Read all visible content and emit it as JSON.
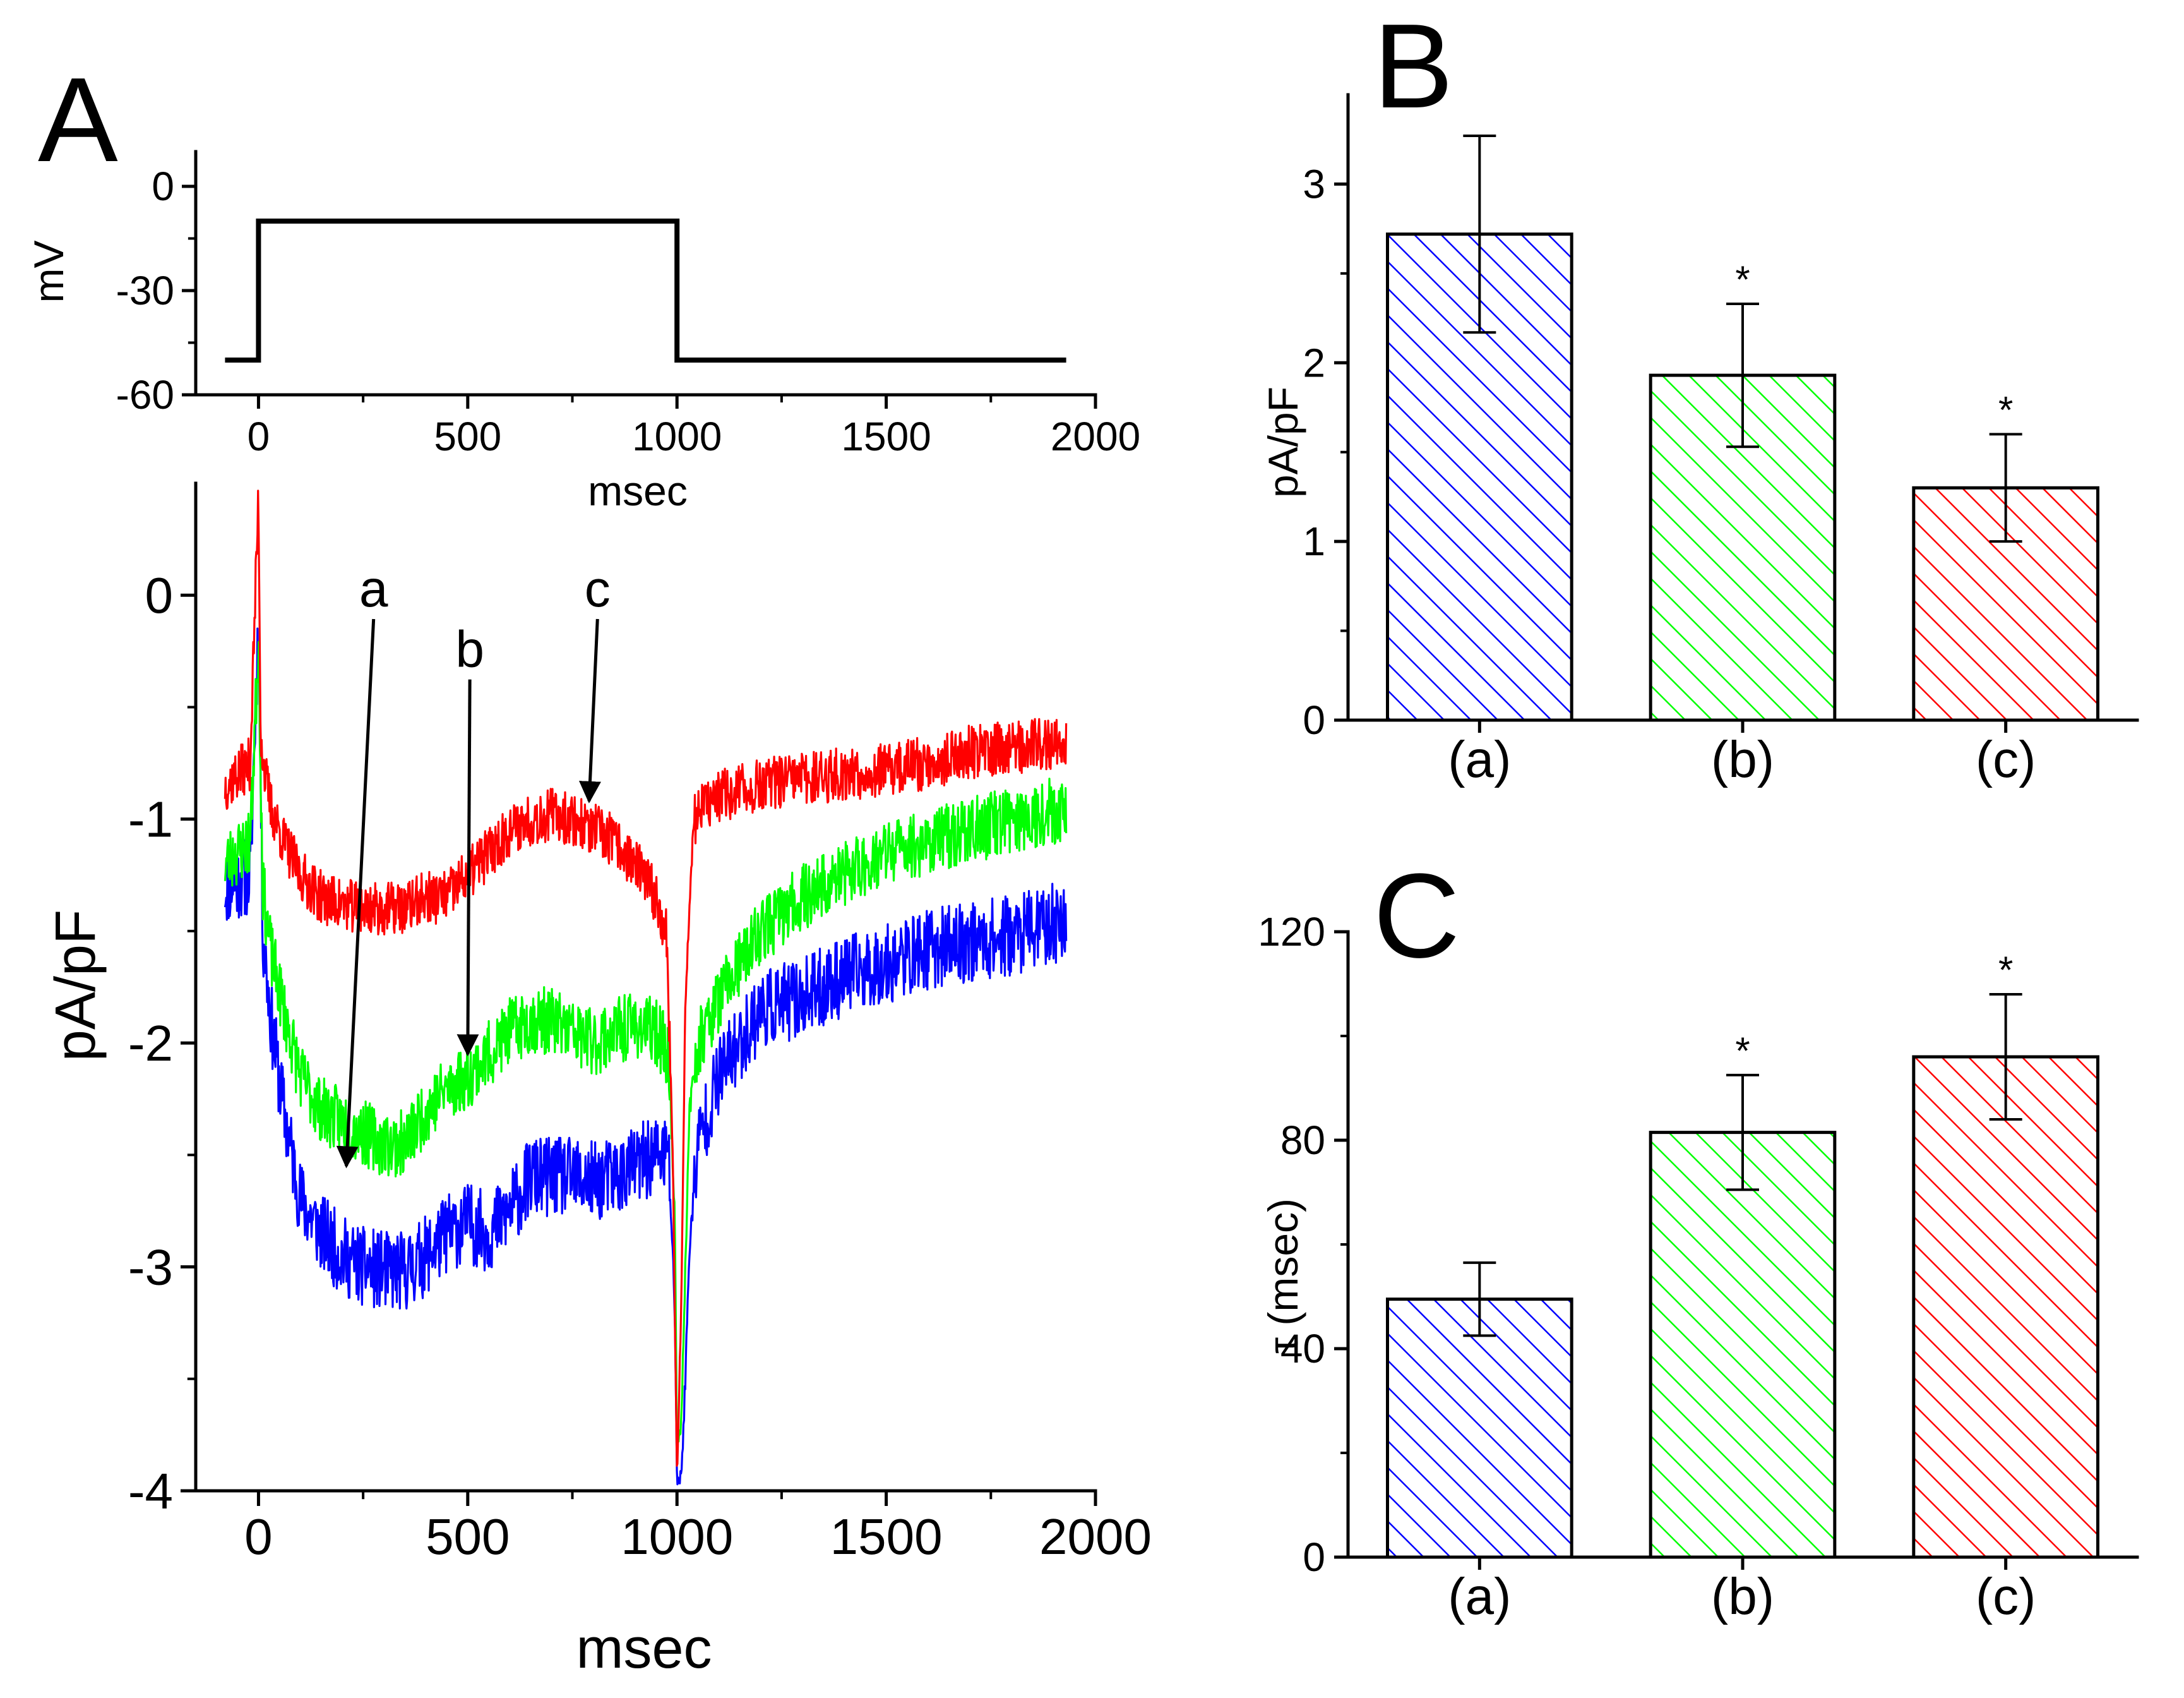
{
  "chart_data": [
    {
      "id": "A-top",
      "panel_label": "A",
      "type": "line",
      "title": "",
      "xlabel": "msec",
      "ylabel": "mV",
      "xlim": [
        -150,
        2000
      ],
      "ylim": [
        -60,
        10
      ],
      "xticks": [
        0,
        500,
        1000,
        1500,
        2000
      ],
      "xtick_labels": [
        "0",
        "500",
        "1000",
        "1500",
        "2000"
      ],
      "yticks": [
        0,
        -30,
        -60
      ],
      "ytick_labels": [
        "0",
        "-30",
        "-60"
      ],
      "grid": false,
      "series": [
        {
          "name": "voltage protocol",
          "color": "#000000",
          "x": [
            -80,
            0,
            0,
            1000,
            1000,
            1930
          ],
          "y": [
            -50,
            -50,
            -10,
            -10,
            -50,
            -50
          ]
        }
      ]
    },
    {
      "id": "A-bottom",
      "type": "line",
      "title": "",
      "xlabel": "msec",
      "ylabel": "pA/pF",
      "xlim": [
        -150,
        2000
      ],
      "ylim": [
        -4,
        0.5
      ],
      "xticks": [
        0,
        500,
        1000,
        1500,
        2000
      ],
      "xtick_labels": [
        "0",
        "500",
        "1000",
        "1500",
        "2000"
      ],
      "yticks": [
        0,
        -1,
        -2,
        -3,
        -4
      ],
      "ytick_labels": [
        "0",
        "-1",
        "-2",
        "-3",
        "-4"
      ],
      "grid": false,
      "annotations": [
        {
          "label": "a",
          "points_to_series": "a",
          "x": 210,
          "y": -2.55
        },
        {
          "label": "b",
          "points_to_series": "b",
          "x": 500,
          "y": -2.05
        },
        {
          "label": "c",
          "points_to_series": "c",
          "x": 790,
          "y": -0.92
        }
      ],
      "series": [
        {
          "name": "a",
          "color": "#0000ff",
          "noise": 0.18,
          "x": [
            -80,
            -20,
            0,
            10,
            30,
            60,
            100,
            150,
            200,
            250,
            300,
            350,
            400,
            450,
            500,
            550,
            600,
            650,
            700,
            750,
            800,
            850,
            900,
            950,
            980,
            995,
            1000,
            1010,
            1020,
            1030,
            1050,
            1100,
            1150,
            1200,
            1300,
            1400,
            1500,
            1600,
            1700,
            1800,
            1930
          ],
          "y": [
            -1.3,
            -1.25,
            -0.1,
            -1.5,
            -1.9,
            -2.3,
            -2.7,
            -2.85,
            -2.95,
            -3.0,
            -3.02,
            -3.02,
            -2.95,
            -2.85,
            -2.8,
            -2.85,
            -2.75,
            -2.6,
            -2.6,
            -2.6,
            -2.62,
            -2.6,
            -2.55,
            -2.5,
            -2.5,
            -3.2,
            -3.95,
            -3.95,
            -3.5,
            -2.9,
            -2.45,
            -2.15,
            -2.0,
            -1.85,
            -1.8,
            -1.7,
            -1.65,
            -1.58,
            -1.55,
            -1.52,
            -1.45
          ]
        },
        {
          "name": "b",
          "color": "#00ff00",
          "noise": 0.15,
          "x": [
            -80,
            -20,
            0,
            10,
            30,
            60,
            100,
            150,
            200,
            250,
            300,
            350,
            400,
            450,
            500,
            550,
            600,
            650,
            700,
            750,
            800,
            850,
            900,
            950,
            980,
            995,
            1000,
            1010,
            1020,
            1030,
            1050,
            1100,
            1150,
            1200,
            1300,
            1400,
            1500,
            1600,
            1700,
            1800,
            1930
          ],
          "y": [
            -1.2,
            -1.1,
            -0.2,
            -1.3,
            -1.6,
            -1.85,
            -2.15,
            -2.3,
            -2.35,
            -2.4,
            -2.45,
            -2.45,
            -2.3,
            -2.2,
            -2.15,
            -2.05,
            -1.95,
            -1.9,
            -1.9,
            -1.95,
            -2.0,
            -1.95,
            -1.92,
            -1.95,
            -2.05,
            -2.8,
            -3.8,
            -3.7,
            -3.0,
            -2.3,
            -2.0,
            -1.8,
            -1.65,
            -1.5,
            -1.35,
            -1.25,
            -1.15,
            -1.1,
            -1.05,
            -1.0,
            -0.95
          ]
        },
        {
          "name": "c",
          "color": "#ff0000",
          "noise": 0.12,
          "x": [
            -80,
            -20,
            0,
            5,
            15,
            30,
            60,
            100,
            150,
            200,
            250,
            300,
            350,
            400,
            450,
            500,
            550,
            600,
            650,
            700,
            750,
            800,
            850,
            900,
            950,
            975,
            990,
            1000,
            1010,
            1020,
            1040,
            1060,
            1100,
            1200,
            1300,
            1400,
            1500,
            1600,
            1700,
            1800,
            1930
          ],
          "y": [
            -0.85,
            -0.75,
            0.45,
            -0.6,
            -0.8,
            -0.95,
            -1.1,
            -1.25,
            -1.35,
            -1.38,
            -1.4,
            -1.4,
            -1.4,
            -1.35,
            -1.35,
            -1.25,
            -1.15,
            -1.05,
            -1.0,
            -0.98,
            -1.0,
            -1.05,
            -1.1,
            -1.2,
            -1.35,
            -1.5,
            -2.5,
            -3.95,
            -3.2,
            -1.8,
            -1.0,
            -0.95,
            -0.9,
            -0.85,
            -0.82,
            -0.8,
            -0.78,
            -0.75,
            -0.7,
            -0.68,
            -0.65
          ]
        }
      ]
    },
    {
      "id": "B",
      "panel_label": "B",
      "type": "bar",
      "title": "",
      "xlabel": "",
      "ylabel": "pA/pF",
      "ylim": [
        0,
        3.5
      ],
      "yticks": [
        0,
        1,
        2,
        3
      ],
      "ytick_labels": [
        "0",
        "1",
        "2",
        "3"
      ],
      "grid": false,
      "categories": [
        "(a)",
        "(b)",
        "(c)"
      ],
      "values": [
        2.72,
        1.93,
        1.3
      ],
      "errors": [
        0.55,
        0.4,
        0.3
      ],
      "significance": [
        "",
        "*",
        "*"
      ],
      "colors": [
        "#0000ff",
        "#00ff00",
        "#ff0000"
      ],
      "fill": "diagonal hatch"
    },
    {
      "id": "C",
      "panel_label": "C",
      "type": "bar",
      "title": "",
      "xlabel": "",
      "ylabel": "τ (msec)",
      "ylim": [
        0,
        120
      ],
      "yticks": [
        0,
        40,
        80,
        120
      ],
      "ytick_labels": [
        "0",
        "40",
        "80",
        "120"
      ],
      "grid": false,
      "categories": [
        "(a)",
        "(b)",
        "(c)"
      ],
      "values": [
        49.5,
        81.5,
        96
      ],
      "errors": [
        7,
        11,
        12
      ],
      "significance": [
        "",
        "*",
        "*"
      ],
      "colors": [
        "#0000ff",
        "#00ff00",
        "#ff0000"
      ],
      "fill": "diagonal hatch"
    }
  ]
}
